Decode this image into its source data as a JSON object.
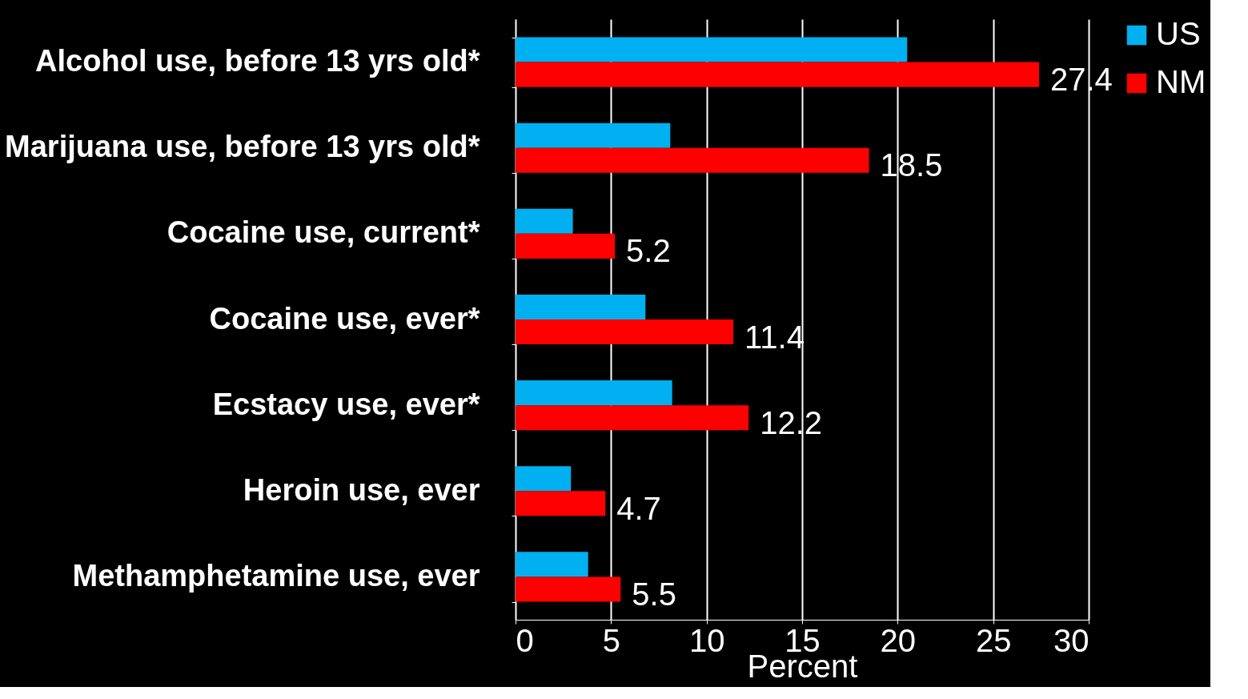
{
  "chart_data": {
    "type": "bar",
    "orientation": "horizontal",
    "xlabel": "Percent",
    "categories": [
      "Alcohol use, before 13 yrs old*",
      "Marijuana use, before 13 yrs old*",
      "Cocaine use, current*",
      "Cocaine use, ever*",
      "Ecstacy use, ever*",
      "Heroin use, ever",
      "Methamphetamine use, ever"
    ],
    "series": [
      {
        "name": "US",
        "color": "#00b0f0",
        "values": [
          20.5,
          8.1,
          3.0,
          6.8,
          8.2,
          2.9,
          3.8
        ]
      },
      {
        "name": "NM",
        "color": "#ff0000",
        "values": [
          27.4,
          18.5,
          5.2,
          11.4,
          12.2,
          4.7,
          5.5
        ],
        "value_labels": [
          "27.4",
          "18.5",
          "5.2",
          "11.4",
          "12.2",
          "4.7",
          "5.5"
        ]
      }
    ],
    "xlim": [
      0,
      30
    ],
    "xticks": [
      0,
      5,
      10,
      15,
      20,
      25,
      30
    ],
    "grid": "x",
    "legend": "right"
  }
}
